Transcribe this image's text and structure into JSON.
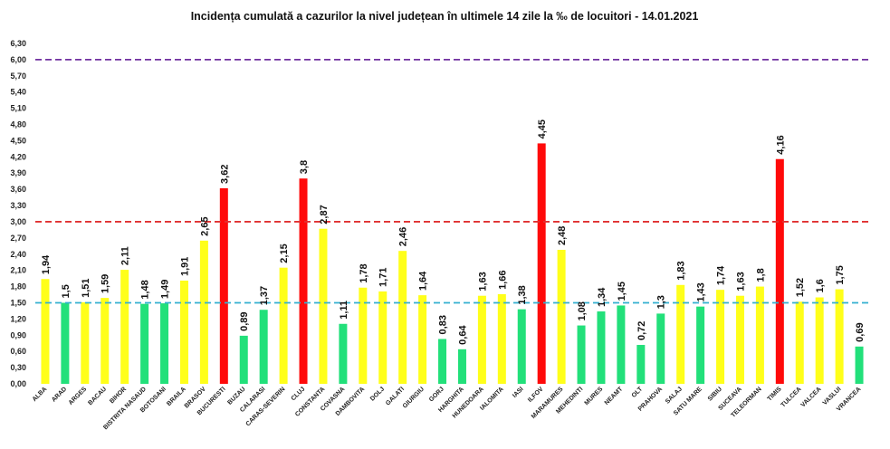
{
  "chart_data": {
    "type": "bar",
    "title": "Incidența cumulată a cazurilor la nivel județean în ultimele 14 zile   la ‰ de locuitori  - 14.01.2021",
    "xlabel": "",
    "ylabel": "",
    "ylim": [
      0,
      6.3
    ],
    "grid": false,
    "legend": "none",
    "yticks": [
      "0,00",
      "0,30",
      "0,60",
      "0,90",
      "1,20",
      "1,50",
      "1,80",
      "2,10",
      "2,40",
      "2,70",
      "3,00",
      "3,30",
      "3,60",
      "3,90",
      "4,20",
      "4,50",
      "4,80",
      "5,10",
      "5,40",
      "5,70",
      "6,00",
      "6,30"
    ],
    "categories": [
      "ALBA",
      "ARAD",
      "ARGES",
      "BACAU",
      "BIHOR",
      "BISTRITA NASAUD",
      "BOTOSANI",
      "BRAILA",
      "BRASOV",
      "BUCURESTI",
      "BUZAU",
      "CALARASI",
      "CARAS-SEVERIN",
      "CLUJ",
      "CONSTANTA",
      "COVASNA",
      "DAMBOVITA",
      "DOLJ",
      "GALATI",
      "GIURGIU",
      "GORJ",
      "HARGHITA",
      "HUNEDOARA",
      "IALOMITA",
      "IASI",
      "ILFOV",
      "MARAMURES",
      "MEHEDINTI",
      "MURES",
      "NEAMT",
      "OLT",
      "PRAHOVA",
      "SALAJ",
      "SATU MARE",
      "SIBIU",
      "SUCEAVA",
      "TELEORMAN",
      "TIMIS",
      "TULCEA",
      "VALCEA",
      "VASLUI",
      "VRANCEA"
    ],
    "values": [
      1.94,
      1.5,
      1.51,
      1.59,
      2.11,
      1.48,
      1.49,
      1.91,
      2.65,
      3.62,
      0.89,
      1.37,
      2.15,
      3.8,
      2.87,
      1.11,
      1.78,
      1.71,
      2.46,
      1.64,
      0.83,
      0.64,
      1.63,
      1.66,
      1.38,
      4.45,
      2.48,
      1.08,
      1.34,
      1.45,
      0.72,
      1.3,
      1.83,
      1.43,
      1.74,
      1.63,
      1.8,
      4.16,
      1.52,
      1.6,
      1.75,
      0.69
    ],
    "value_labels": [
      "1,94",
      "1,5",
      "1,51",
      "1,59",
      "2,11",
      "1,48",
      "1,49",
      "1,91",
      "2,65",
      "3,62",
      "0,89",
      "1,37",
      "2,15",
      "3,8",
      "2,87",
      "1,11",
      "1,78",
      "1,71",
      "2,46",
      "1,64",
      "0,83",
      "0,64",
      "1,63",
      "1,66",
      "1,38",
      "4,45",
      "2,48",
      "1,08",
      "1,34",
      "1,45",
      "0,72",
      "1,3",
      "1,83",
      "1,43",
      "1,74",
      "1,63",
      "1,8",
      "4,16",
      "1,52",
      "1,6",
      "1,75",
      "0,69"
    ],
    "thresholds": [
      {
        "value": 6.0,
        "color": "#7030a0"
      },
      {
        "value": 3.0,
        "color": "#e03030"
      },
      {
        "value": 1.5,
        "color": "#33b0d0"
      }
    ],
    "colors": {
      "green": "#22e07a",
      "yellow": "#ffff1a",
      "red": "#ff0a0a"
    }
  }
}
